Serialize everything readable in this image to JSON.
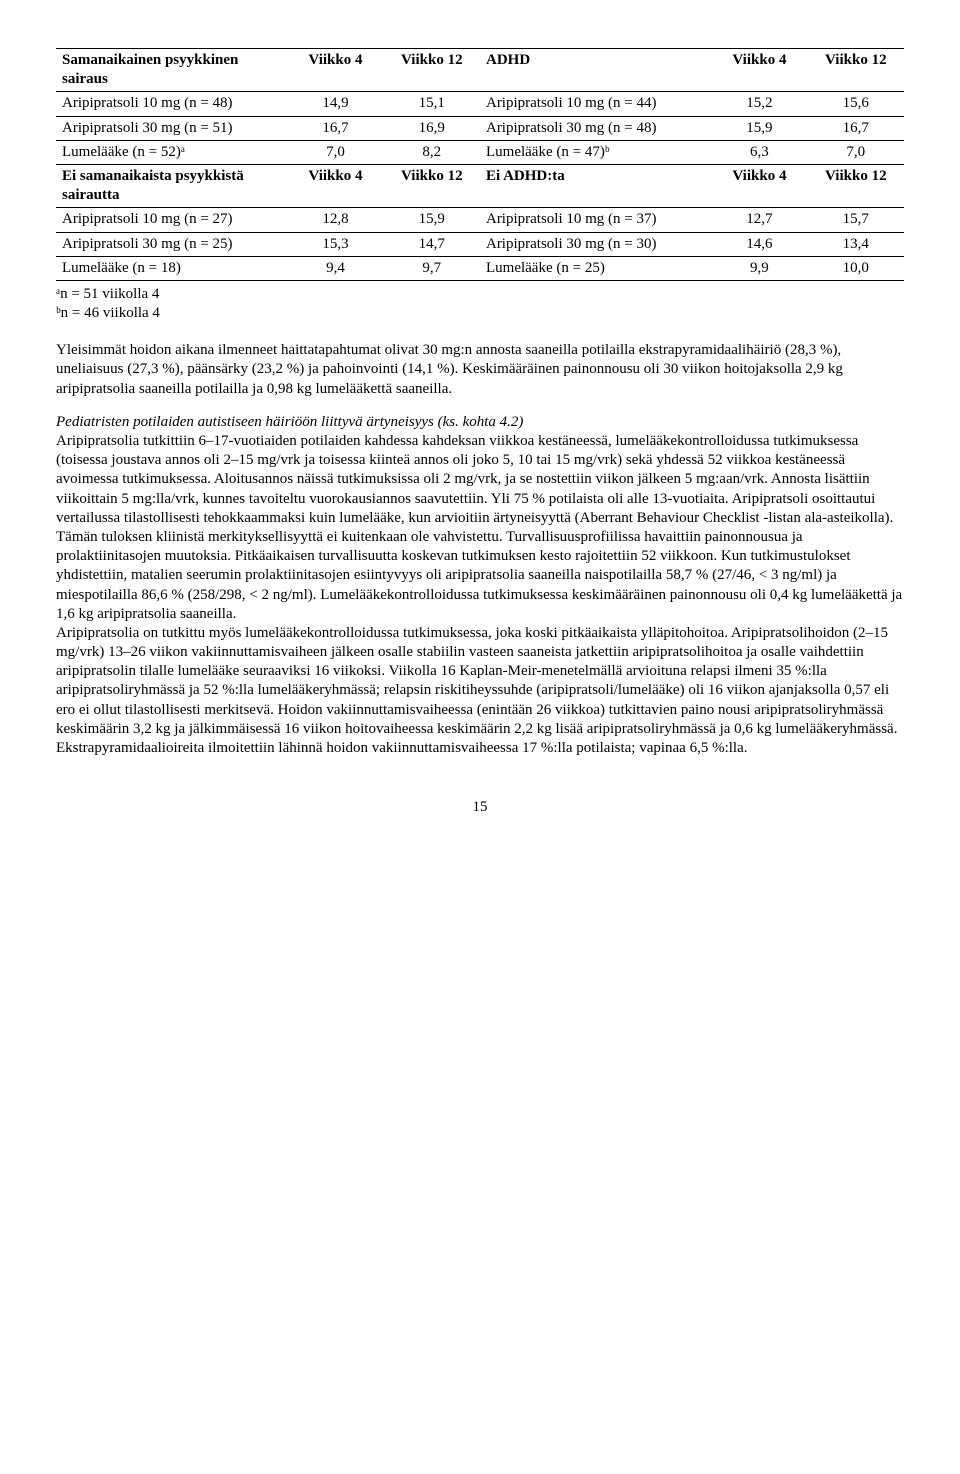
{
  "table": {
    "col_widths": [
      "24%",
      "10%",
      "10%",
      "24%",
      "10%",
      "10%"
    ],
    "blocks": [
      {
        "header": true,
        "rows": [
          [
            "Samanaikainen psyykkinen sairaus",
            "Viikko 4",
            "Viikko 12",
            "ADHD",
            "Viikko 4",
            "Viikko 12"
          ]
        ]
      },
      {
        "rows": [
          [
            "Aripipratsoli 10 mg (n = 48)",
            "14,9",
            "15,1",
            "Aripipratsoli 10 mg (n = 44)",
            "15,2",
            "15,6"
          ]
        ]
      },
      {
        "rows": [
          [
            "Aripipratsoli 30 mg (n = 51)",
            "16,7",
            "16,9",
            "Aripipratsoli 30 mg (n = 48)",
            "15,9",
            "16,7"
          ]
        ]
      },
      {
        "rows": [
          [
            "Lumelääke (n = 52)ᵃ",
            "7,0",
            "8,2",
            "Lumelääke (n = 47)ᵇ",
            "6,3",
            "7,0"
          ]
        ]
      },
      {
        "header": true,
        "rows": [
          [
            "Ei samanaikaista psyykkistä sairautta",
            "Viikko 4",
            "Viikko 12",
            "Ei ADHD:ta",
            "Viikko 4",
            "Viikko 12"
          ]
        ]
      },
      {
        "rows": [
          [
            "Aripipratsoli 10 mg (n = 27)",
            "12,8",
            "15,9",
            "Aripipratsoli 10 mg (n = 37)",
            "12,7",
            "15,7"
          ]
        ]
      },
      {
        "rows": [
          [
            "Aripipratsoli 30 mg (n = 25)",
            "15,3",
            "14,7",
            "Aripipratsoli 30 mg (n = 30)",
            "14,6",
            "13,4"
          ]
        ]
      },
      {
        "rows": [
          [
            "Lumelääke (n = 18)",
            "9,4",
            "9,7",
            "Lumelääke (n = 25)",
            "9,9",
            "10,0"
          ]
        ]
      }
    ],
    "footnotes": [
      "ᵃn = 51 viikolla 4",
      "ᵇn = 46 viikolla 4"
    ]
  },
  "paragraphs": {
    "p1": "Yleisimmät hoidon aikana ilmenneet haittatapahtumat olivat 30 mg:n annosta saaneilla potilailla ekstrapyramidaalihäiriö (28,3 %), uneliaisuus (27,3 %), päänsärky (23,2 %) ja pahoinvointi (14,1 %). Keskimääräinen painonnousu oli 30 viikon hoitojaksolla 2,9 kg aripipratsolia saaneilla potilailla ja 0,98 kg lumelääkettä saaneilla.",
    "p2_heading": "Pediatristen potilaiden autistiseen häiriöön liittyvä ärtyneisyys (ks. kohta 4.2)",
    "p2_body": "Aripipratsolia tutkittiin 6–17-vuotiaiden potilaiden kahdessa kahdeksan viikkoa kestäneessä, lumelääkekontrolloidussa tutkimuksessa (toisessa joustava annos oli 2–15 mg/vrk ja toisessa kiinteä annos oli joko 5, 10 tai 15 mg/vrk) sekä yhdessä 52 viikkoa kestäneessä avoimessa tutkimuksessa. Aloitusannos näissä tutkimuksissa oli 2 mg/vrk, ja se nostettiin viikon jälkeen 5 mg:aan/vrk. Annosta lisättiin viikoittain 5 mg:lla/vrk, kunnes tavoiteltu vuorokausiannos saavutettiin. Yli 75 % potilaista oli alle 13-vuotiaita. Aripipratsoli osoittautui vertailussa tilastollisesti tehokkaammaksi kuin lumelääke, kun arvioitiin ärtyneisyyttä (Aberrant Behaviour Checklist -listan ala-asteikolla). Tämän tuloksen kliinistä merkityksellisyyttä ei kuitenkaan ole vahvistettu. Turvallisuusprofiilissa havaittiin painonnousua ja prolaktiinitasojen muutoksia. Pitkäaikaisen turvallisuutta koskevan tutkimuksen kesto rajoitettiin 52 viikkoon. Kun tutkimustulokset yhdistettiin, matalien seerumin prolaktiinitasojen esiintyvyys oli aripipratsolia saaneilla naispotilailla 58,7 % (27/46, < 3 ng/ml) ja miespotilailla 86,6 % (258/298, < 2 ng/ml). Lumelääkekontrolloidussa tutkimuksessa keskimääräinen painonnousu oli 0,4 kg lumelääkettä ja 1,6 kg aripipratsolia saaneilla.",
    "p3": "Aripipratsolia on tutkittu myös lumelääkekontrolloidussa tutkimuksessa, joka koski pitkäaikaista ylläpitohoitoa. Aripipratsolihoidon (2–15 mg/vrk) 13–26 viikon vakiinnuttamisvaiheen jälkeen osalle stabiilin vasteen saaneista jatkettiin aripipratsolihoitoa ja osalle vaihdettiin aripipratsolin tilalle lumelääke seuraaviksi 16 viikoksi. Viikolla 16 Kaplan-Meir-menetelmällä arvioituna relapsi ilmeni 35 %:lla aripipratsoliryhmässä ja 52 %:lla lumelääkeryhmässä; relapsin riskitiheyssuhde (aripipratsoli/lumelääke) oli 16 viikon ajanjaksolla 0,57 eli ero ei ollut tilastollisesti merkitsevä. Hoidon vakiinnuttamisvaiheessa (enintään 26 viikkoa) tutkittavien paino nousi aripipratsoliryhmässä keskimäärin 3,2 kg ja jälkimmäisessä 16 viikon hoitovaiheessa keskimäärin 2,2 kg lisää aripipratsoliryhmässä ja 0,6 kg lumelääkeryhmässä. Ekstrapyramidaalioireita ilmoitettiin lähinnä hoidon vakiinnuttamisvaiheessa 17 %:lla potilaista; vapinaa 6,5 %:lla."
  },
  "page_number": "15"
}
